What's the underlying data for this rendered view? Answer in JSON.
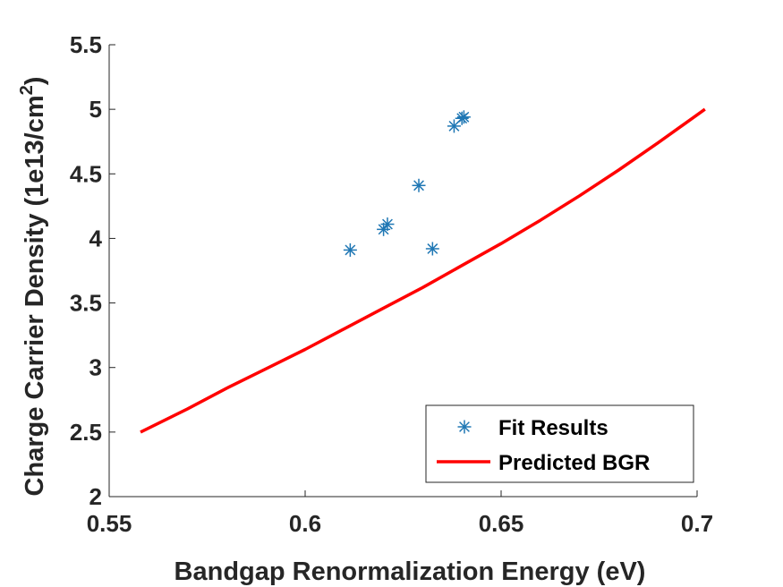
{
  "chart_data": {
    "type": "scatter",
    "xlabel": "Bandgap Renormalization Energy (eV)",
    "ylabel_main": "Charge Carrier Density (1e13/cm",
    "ylabel_sup": "2",
    "ylabel_close": ")",
    "xlim": [
      0.55,
      0.7
    ],
    "ylim": [
      2,
      5.5
    ],
    "xticks": [
      0.55,
      0.6,
      0.65,
      0.7
    ],
    "xtick_labels": [
      "0.55",
      "0.6",
      "0.65",
      "0.7"
    ],
    "yticks": [
      2,
      2.5,
      3,
      3.5,
      4,
      4.5,
      5,
      5.5
    ],
    "ytick_labels": [
      "2",
      "2.5",
      "3",
      "3.5",
      "4",
      "4.5",
      "5",
      "5.5"
    ],
    "grid": false,
    "legend_position": "bottom-right",
    "series": [
      {
        "name": "Fit Results",
        "kind": "scatter",
        "marker": "asterisk",
        "color": "#1f77b4",
        "x": [
          0.6115,
          0.62,
          0.621,
          0.629,
          0.6325,
          0.638,
          0.64,
          0.6405
        ],
        "y": [
          3.91,
          4.07,
          4.11,
          4.41,
          3.92,
          4.87,
          4.93,
          4.94
        ]
      },
      {
        "name": "Predicted BGR",
        "kind": "line",
        "color": "#ff0000",
        "x": [
          0.558,
          0.57,
          0.58,
          0.59,
          0.6,
          0.61,
          0.62,
          0.63,
          0.64,
          0.65,
          0.66,
          0.67,
          0.68,
          0.69,
          0.702
        ],
        "y": [
          2.5,
          2.68,
          2.84,
          2.99,
          3.14,
          3.3,
          3.46,
          3.62,
          3.79,
          3.96,
          4.14,
          4.33,
          4.53,
          4.74,
          5.0
        ]
      }
    ]
  }
}
